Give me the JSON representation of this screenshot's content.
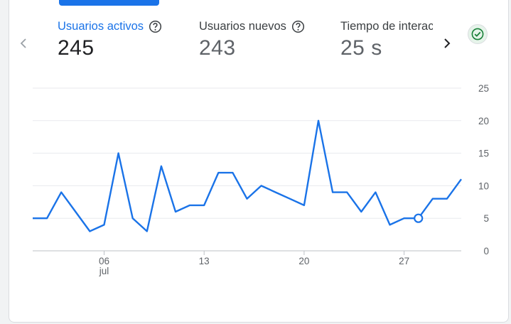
{
  "metrics": [
    {
      "label": "Usuarios activos",
      "value": "245"
    },
    {
      "label": "Usuarios nuevos",
      "value": "243"
    },
    {
      "label": "Tiempo de interacción medio",
      "value": "25 s"
    }
  ],
  "icons": {
    "prev": "chevron-left-icon",
    "next": "chevron-right-icon",
    "help": "help-circle-icon",
    "status": "check-circle-icon"
  },
  "colors": {
    "accent": "#1a73e8",
    "line": "#1a73e8",
    "status_green": "#188038"
  },
  "chart_data": {
    "type": "line",
    "x": [
      1,
      2,
      3,
      4,
      5,
      6,
      7,
      8,
      9,
      10,
      11,
      12,
      13,
      14,
      15,
      16,
      17,
      18,
      19,
      20,
      21,
      22,
      23,
      24,
      25,
      26,
      27,
      28,
      29,
      30,
      31
    ],
    "x_tick_labels": [
      {
        "x": 6,
        "label": "06",
        "sublabel": "jul"
      },
      {
        "x": 13,
        "label": "13",
        "sublabel": ""
      },
      {
        "x": 20,
        "label": "20",
        "sublabel": ""
      },
      {
        "x": 27,
        "label": "27",
        "sublabel": ""
      }
    ],
    "series": [
      {
        "values": [
          5,
          5,
          9,
          6,
          3,
          4,
          15,
          5,
          3,
          13,
          6,
          7,
          7,
          12,
          12,
          8,
          10,
          9,
          8,
          7,
          20,
          9,
          9,
          6,
          9,
          4,
          5,
          5,
          8,
          8,
          11
        ]
      }
    ],
    "highlight_index": 27,
    "ylim": [
      0,
      25
    ],
    "y_ticks": [
      "25",
      "20",
      "15",
      "10",
      "5",
      "0"
    ],
    "grid": true
  }
}
